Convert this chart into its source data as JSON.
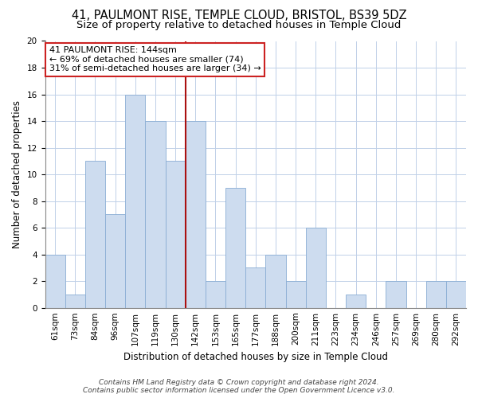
{
  "title": "41, PAULMONT RISE, TEMPLE CLOUD, BRISTOL, BS39 5DZ",
  "subtitle": "Size of property relative to detached houses in Temple Cloud",
  "xlabel": "Distribution of detached houses by size in Temple Cloud",
  "ylabel": "Number of detached properties",
  "bin_labels": [
    "61sqm",
    "73sqm",
    "84sqm",
    "96sqm",
    "107sqm",
    "119sqm",
    "130sqm",
    "142sqm",
    "153sqm",
    "165sqm",
    "177sqm",
    "188sqm",
    "200sqm",
    "211sqm",
    "223sqm",
    "234sqm",
    "246sqm",
    "257sqm",
    "269sqm",
    "280sqm",
    "292sqm"
  ],
  "bar_heights": [
    4,
    1,
    11,
    7,
    16,
    14,
    11,
    14,
    2,
    9,
    3,
    4,
    2,
    6,
    0,
    1,
    0,
    2,
    0,
    2,
    2
  ],
  "vline_bar_index": 7,
  "bar_color": "#cddcef",
  "bar_edge_color": "#8aadd4",
  "vline_color": "#aa1111",
  "annotation_text_line1": "41 PAULMONT RISE: 144sqm",
  "annotation_text_line2": "← 69% of detached houses are smaller (74)",
  "annotation_text_line3": "31% of semi-detached houses are larger (34) →",
  "annotation_box_edge": "#cc2222",
  "ylim": [
    0,
    20
  ],
  "yticks": [
    0,
    2,
    4,
    6,
    8,
    10,
    12,
    14,
    16,
    18,
    20
  ],
  "footer_line1": "Contains HM Land Registry data © Crown copyright and database right 2024.",
  "footer_line2": "Contains public sector information licensed under the Open Government Licence v3.0.",
  "background_color": "#ffffff",
  "grid_color": "#c0d0e8",
  "title_fontsize": 10.5,
  "subtitle_fontsize": 9.5,
  "axis_label_fontsize": 8.5,
  "tick_fontsize": 7.5,
  "annotation_fontsize": 8,
  "footer_fontsize": 6.5
}
